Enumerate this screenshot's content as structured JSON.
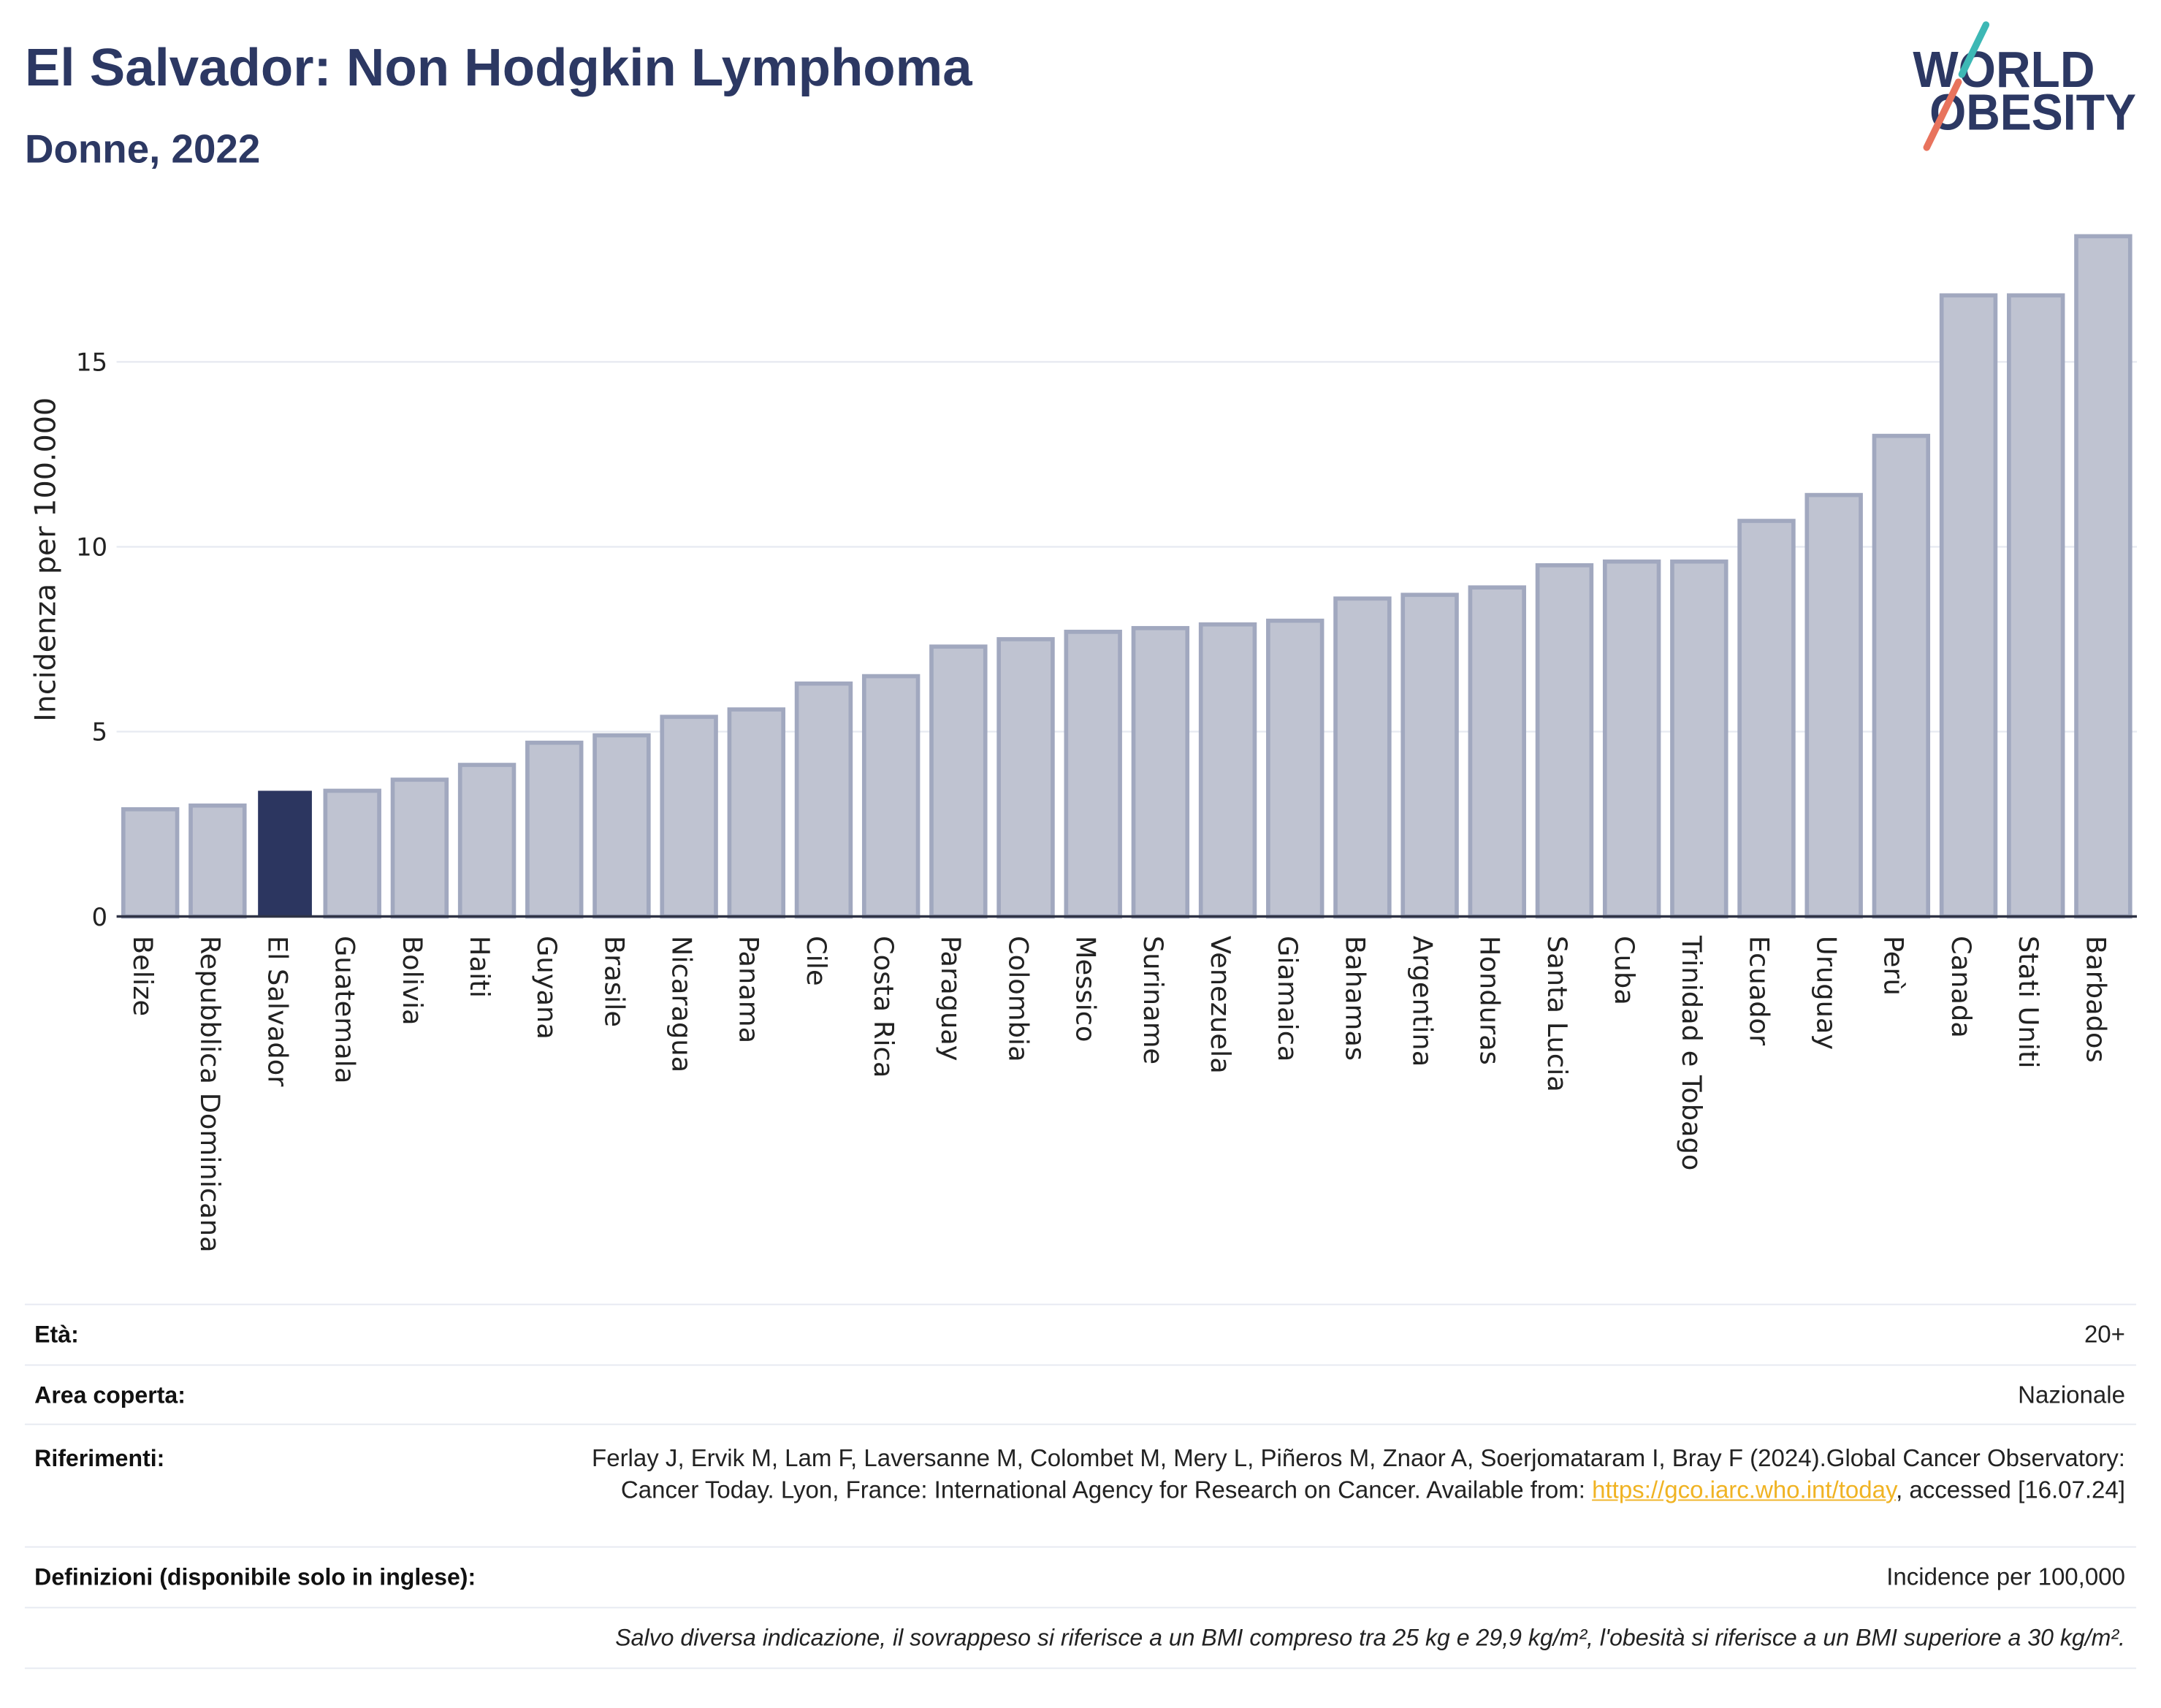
{
  "logo": {
    "line1": "WORLD",
    "line2": "OBESITY"
  },
  "colors": {
    "title": "#2c3863",
    "highlight_bar": "#2c3660",
    "bar_fill": "#bfc3d1",
    "bar_stroke": "#a1a8bf",
    "gridline": "#e6e9f1",
    "axis_line": "#2f3345",
    "link": "#f0b323",
    "logo_teal": "#3db8b5",
    "logo_coral": "#e8735d"
  },
  "chart_data": {
    "type": "bar",
    "title": "El Salvador: Non Hodgkin Lymphoma",
    "subtitle": "Donne, 2022",
    "xlabel": "",
    "ylabel": "Incidenza per 100.000",
    "ylim": [
      0,
      18.9
    ],
    "yticks": [
      0,
      5,
      10,
      15
    ],
    "grid": true,
    "highlight": "El Salvador",
    "categories": [
      "Belize",
      "Repubblica Dominicana",
      "El Salvador",
      "Guatemala",
      "Bolivia",
      "Haiti",
      "Guyana",
      "Brasile",
      "Nicaragua",
      "Panama",
      "Cile",
      "Costa Rica",
      "Paraguay",
      "Colombia",
      "Messico",
      "Suriname",
      "Venezuela",
      "Giamaica",
      "Bahamas",
      "Argentina",
      "Honduras",
      "Santa Lucia",
      "Cuba",
      "Trinidad e Tobago",
      "Ecuador",
      "Uruguay",
      "Perù",
      "Canada",
      "Stati Uniti",
      "Barbados"
    ],
    "values": [
      2.9,
      3.0,
      3.4,
      3.4,
      3.7,
      4.1,
      4.7,
      4.9,
      5.4,
      5.6,
      6.3,
      6.5,
      7.3,
      7.5,
      7.7,
      7.8,
      7.9,
      8.0,
      8.6,
      8.7,
      8.9,
      9.5,
      9.6,
      9.6,
      10.7,
      11.4,
      13.0,
      16.8,
      16.8,
      18.4
    ]
  },
  "info": {
    "age": {
      "label": "Età:",
      "value": "20+"
    },
    "area": {
      "label": "Area coperta:",
      "value": "Nazionale"
    },
    "references": {
      "label": "Riferimenti:",
      "text_before": "Ferlay J, Ervik M, Lam F, Laversanne M, Colombet M, Mery L, Piñeros M, Znaor A, Soerjomataram I, Bray F (2024).Global Cancer Observatory: Cancer Today. Lyon, France: International Agency for Research on Cancer. Available from: ",
      "link": "https://gco.iarc.who.int/today",
      "text_after": ", accessed [16.07.24]"
    },
    "definitions": {
      "label": "Definizioni (disponibile solo in inglese):",
      "value": "Incidence per 100,000"
    },
    "note": "Salvo diversa indicazione, il sovrappeso si riferisce a un BMI compreso tra 25 kg e 29,9 kg/m², l'obesità si riferisce a un BMI superiore a 30 kg/m²."
  }
}
